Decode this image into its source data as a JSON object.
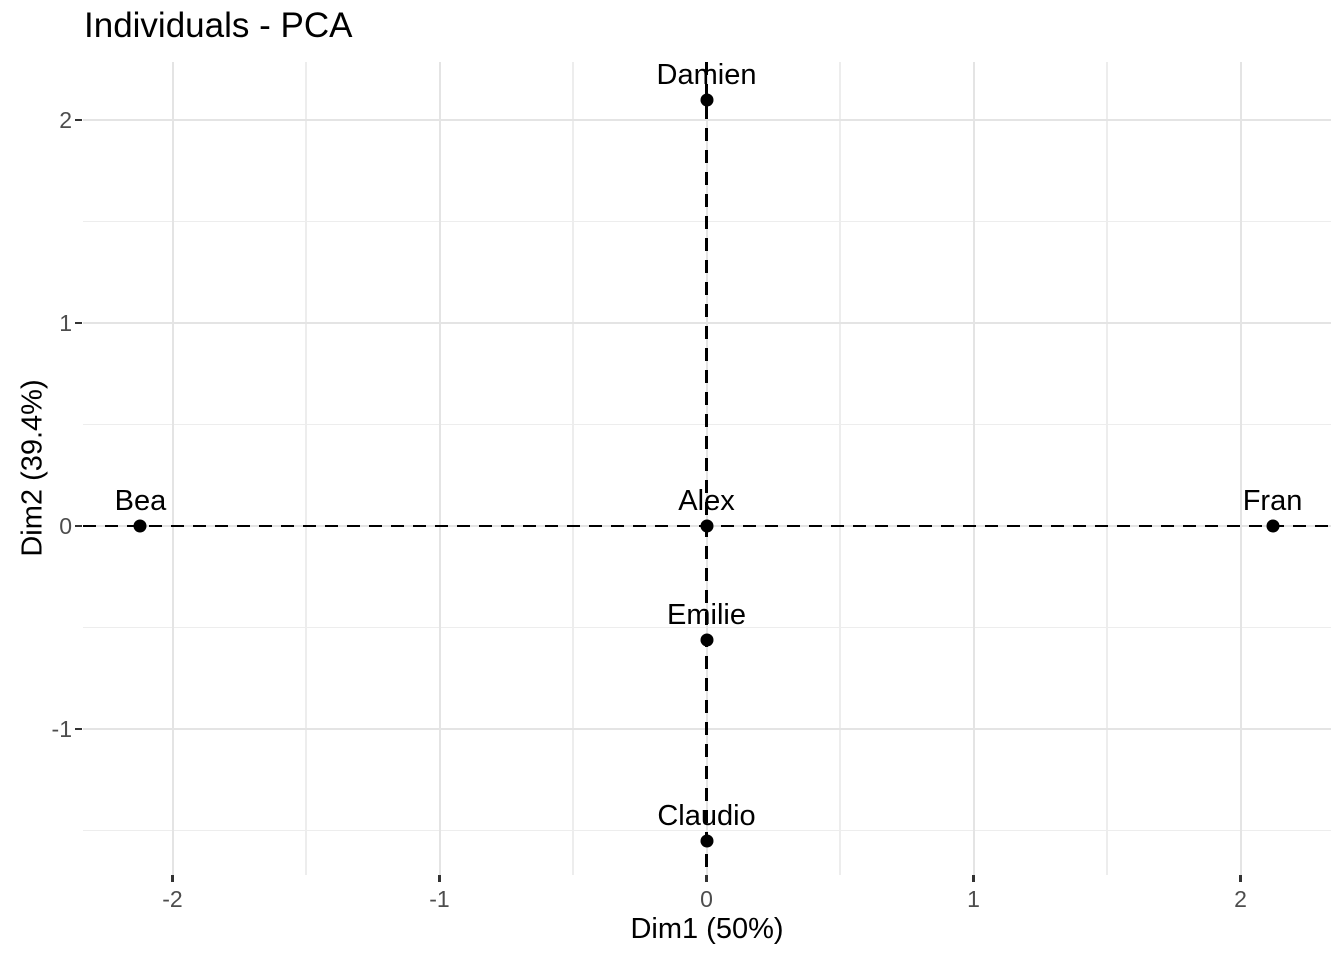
{
  "title": "Individuals - PCA",
  "colors": {
    "background": "#ffffff",
    "title": "#000000",
    "axis_title": "#000000",
    "tick_label": "#4d4d4d",
    "tick_mark": "#333333",
    "grid_major": "#e4e4e4",
    "grid_minor": "#ededed",
    "reference_line": "#000000",
    "point": "#000000",
    "label": "#000000"
  },
  "chart_data": {
    "type": "scatter",
    "title": "Individuals - PCA",
    "xlabel": "Dim1 (50%)",
    "ylabel": "Dim2 (39.4%)",
    "xlim": [
      -2.33,
      2.33
    ],
    "ylim": [
      -1.7,
      2.27
    ],
    "x_ticks": [
      -2,
      -1,
      0,
      1,
      2
    ],
    "y_ticks": [
      2,
      1,
      0,
      -1
    ],
    "x_minor_ticks": [
      -1.5,
      -0.5,
      0.5,
      1.5
    ],
    "y_minor_ticks": [
      1.5,
      0.5,
      -0.5,
      -1.5
    ],
    "grid": true,
    "legend": "none",
    "reference_lines": {
      "vline_x": 0,
      "hline_y": 0,
      "style": "dashed"
    },
    "points": [
      {
        "label": "Damien",
        "x": 0,
        "y": 2.1
      },
      {
        "label": "Bea",
        "x": -2.12,
        "y": 0
      },
      {
        "label": "Alex",
        "x": 0,
        "y": 0
      },
      {
        "label": "Fran",
        "x": 2.12,
        "y": 0
      },
      {
        "label": "Emilie",
        "x": 0,
        "y": -0.56
      },
      {
        "label": "Claudio",
        "x": 0,
        "y": -1.55
      }
    ]
  }
}
